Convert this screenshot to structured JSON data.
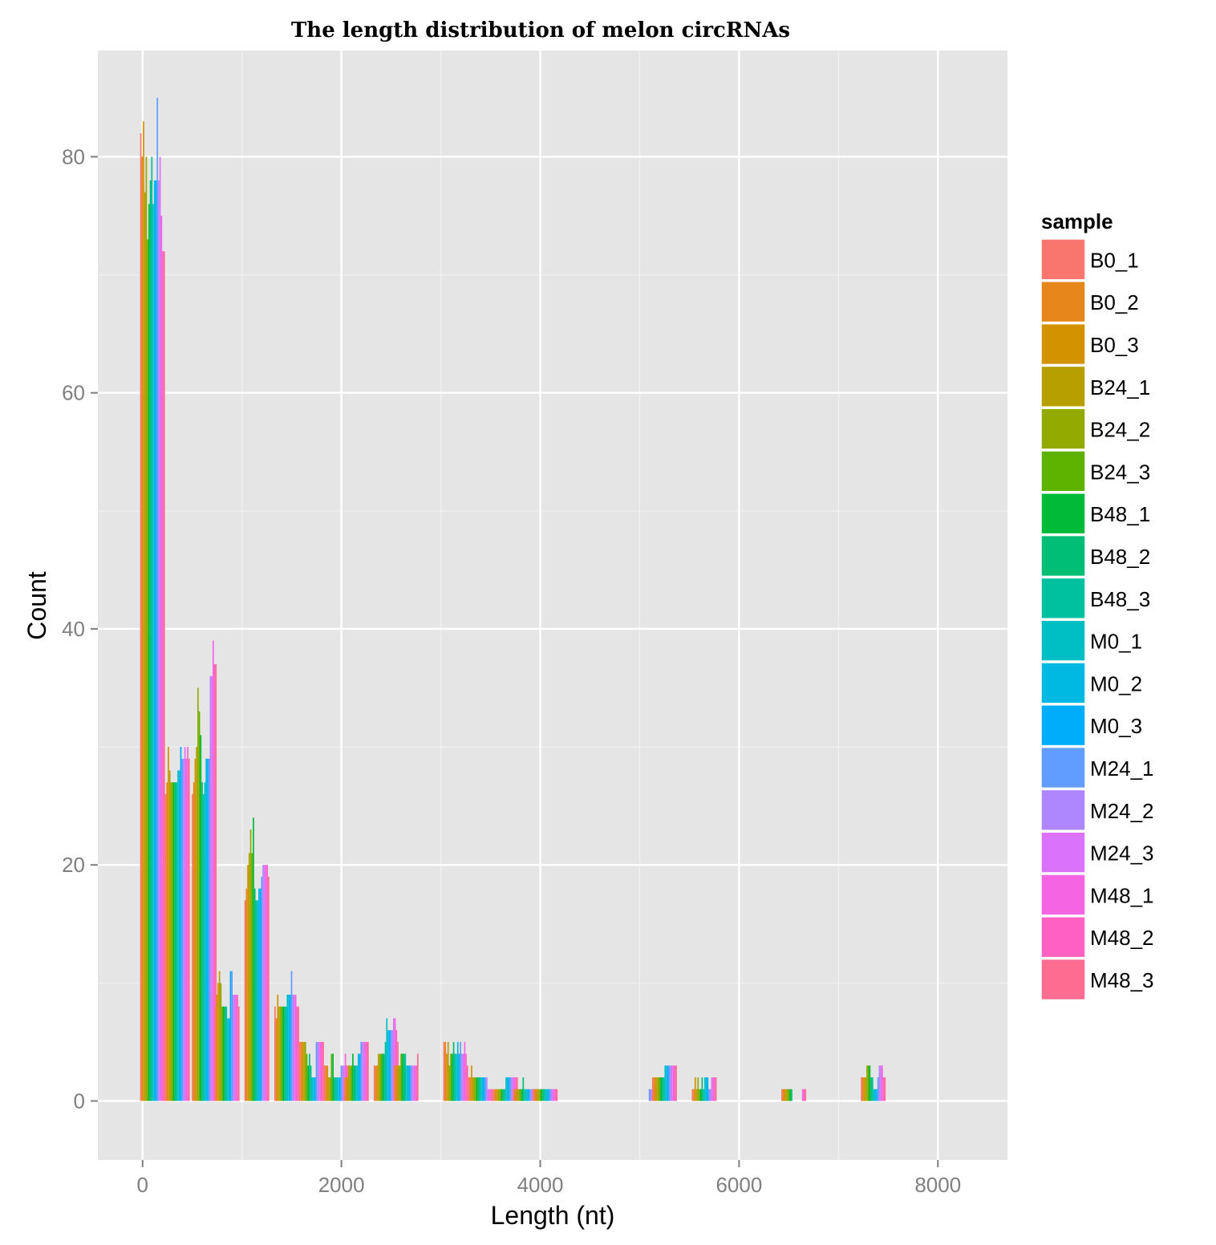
{
  "chart_data": {
    "type": "bar",
    "title": "The length distribution of melon circRNAs",
    "xlabel": "Length (nt)",
    "ylabel": "Count",
    "xlim": [
      -450,
      8700
    ],
    "ylim": [
      -5,
      89
    ],
    "x_ticks": [
      0,
      2000,
      4000,
      6000,
      8000
    ],
    "x_tick_labels": [
      "0",
      "2000",
      "4000",
      "6000",
      "8000"
    ],
    "y_ticks": [
      0,
      20,
      40,
      60,
      80
    ],
    "y_tick_labels": [
      "0",
      "20",
      "40",
      "60",
      "80"
    ],
    "grid": true,
    "legend": {
      "title": "sample",
      "position": "right"
    },
    "categories": [
      100,
      350,
      620,
      850,
      1150,
      1450,
      1700,
      1950,
      2150,
      2450,
      2650,
      3150,
      3400,
      3650,
      3850,
      4050,
      5050,
      5250,
      5650,
      6550,
      7350
    ],
    "series": [
      {
        "name": "B0_1",
        "color": "#F8766D",
        "values": [
          82,
          26,
          26,
          8,
          17,
          8,
          5,
          3,
          2,
          3,
          3,
          5,
          2,
          1,
          1,
          1,
          0,
          2,
          1,
          1,
          2
        ]
      },
      {
        "name": "B0_2",
        "color": "#E7861B",
        "values": [
          80,
          27,
          27,
          9,
          18,
          7,
          5,
          3,
          2,
          3,
          3,
          5,
          2,
          1,
          1,
          1,
          0,
          2,
          1,
          1,
          2
        ]
      },
      {
        "name": "B0_3",
        "color": "#D39200",
        "values": [
          83,
          30,
          29,
          10,
          20,
          9,
          5,
          3,
          2,
          3,
          3,
          4,
          3,
          1,
          1,
          1,
          0,
          2,
          2,
          1,
          2
        ]
      },
      {
        "name": "B24_1",
        "color": "#B79F00",
        "values": [
          77,
          28,
          30,
          11,
          21,
          8,
          5,
          2,
          3,
          4,
          3,
          5,
          2,
          1,
          1,
          1,
          0,
          2,
          1,
          1,
          2
        ]
      },
      {
        "name": "B24_2",
        "color": "#93AA00",
        "values": [
          80,
          27,
          35,
          10,
          23,
          8,
          5,
          2,
          3,
          4,
          3,
          3,
          2,
          1,
          1,
          1,
          0,
          2,
          2,
          1,
          3
        ]
      },
      {
        "name": "B24_3",
        "color": "#5EB300",
        "values": [
          73,
          27,
          33,
          8,
          21,
          8,
          4,
          4,
          3,
          4,
          4,
          4,
          2,
          1,
          1,
          1,
          0,
          2,
          1,
          1,
          3
        ]
      },
      {
        "name": "B48_1",
        "color": "#00BA38",
        "values": [
          76,
          27,
          31,
          8,
          24,
          8,
          3,
          4,
          4,
          4,
          4,
          4,
          2,
          1,
          1,
          1,
          0,
          2,
          1,
          1,
          3
        ]
      },
      {
        "name": "B48_2",
        "color": "#00BF74",
        "values": [
          78,
          27,
          27,
          8,
          18,
          8,
          4,
          2,
          3,
          4,
          4,
          5,
          2,
          1,
          2,
          1,
          0,
          2,
          2,
          1,
          2
        ]
      },
      {
        "name": "B48_3",
        "color": "#00C19F",
        "values": [
          80,
          27,
          26,
          8,
          17,
          8,
          3,
          2,
          3,
          5,
          4,
          4,
          2,
          1,
          1,
          1,
          0,
          2,
          1,
          0,
          2
        ]
      },
      {
        "name": "M0_1",
        "color": "#00BFC4",
        "values": [
          76,
          28,
          27,
          7,
          17,
          9,
          2,
          2,
          3,
          7,
          3,
          4,
          2,
          2,
          1,
          1,
          0,
          3,
          2,
          0,
          1
        ]
      },
      {
        "name": "M0_2",
        "color": "#00B9E3",
        "values": [
          78,
          28,
          29,
          7,
          18,
          9,
          2,
          2,
          4,
          6,
          3,
          5,
          2,
          2,
          1,
          1,
          0,
          3,
          2,
          0,
          1
        ]
      },
      {
        "name": "M0_3",
        "color": "#00ADFA",
        "values": [
          78,
          30,
          29,
          11,
          18,
          9,
          2,
          2,
          4,
          6,
          3,
          4,
          2,
          2,
          1,
          1,
          0,
          3,
          2,
          0,
          1
        ]
      },
      {
        "name": "M24_1",
        "color": "#619CFF",
        "values": [
          85,
          29,
          29,
          11,
          19,
          11,
          5,
          3,
          5,
          6,
          3,
          5,
          2,
          2,
          1,
          1,
          1,
          3,
          1,
          0,
          2
        ]
      },
      {
        "name": "M24_2",
        "color": "#AE87FF",
        "values": [
          78,
          29,
          36,
          9,
          20,
          9,
          5,
          3,
          5,
          6,
          3,
          4,
          2,
          2,
          1,
          1,
          1,
          3,
          1,
          0,
          3
        ]
      },
      {
        "name": "M24_3",
        "color": "#DB72FB",
        "values": [
          80,
          30,
          36,
          9,
          20,
          9,
          5,
          3,
          5,
          7,
          3,
          4,
          1,
          2,
          1,
          1,
          1,
          3,
          2,
          0,
          3
        ]
      },
      {
        "name": "M48_1",
        "color": "#F564E3",
        "values": [
          75,
          29,
          39,
          9,
          20,
          9,
          5,
          4,
          5,
          7,
          3,
          5,
          1,
          2,
          1,
          1,
          1,
          3,
          2,
          1,
          3
        ]
      },
      {
        "name": "M48_2",
        "color": "#FF61C3",
        "values": [
          72,
          30,
          37,
          9,
          20,
          8,
          5,
          3,
          5,
          6,
          3,
          4,
          1,
          2,
          1,
          1,
          1,
          3,
          2,
          1,
          2
        ]
      },
      {
        "name": "M48_3",
        "color": "#FF6C91",
        "values": [
          72,
          29,
          37,
          8,
          19,
          8,
          5,
          3,
          5,
          5,
          4,
          3,
          1,
          2,
          1,
          1,
          1,
          3,
          2,
          1,
          2
        ]
      }
    ]
  },
  "colors": {
    "panel_background": "#E5E5E5",
    "grid_major": "#FFFFFF",
    "grid_minor": "#F2F2F2",
    "tick_text": "#7F7F7F",
    "text": "#000000"
  }
}
